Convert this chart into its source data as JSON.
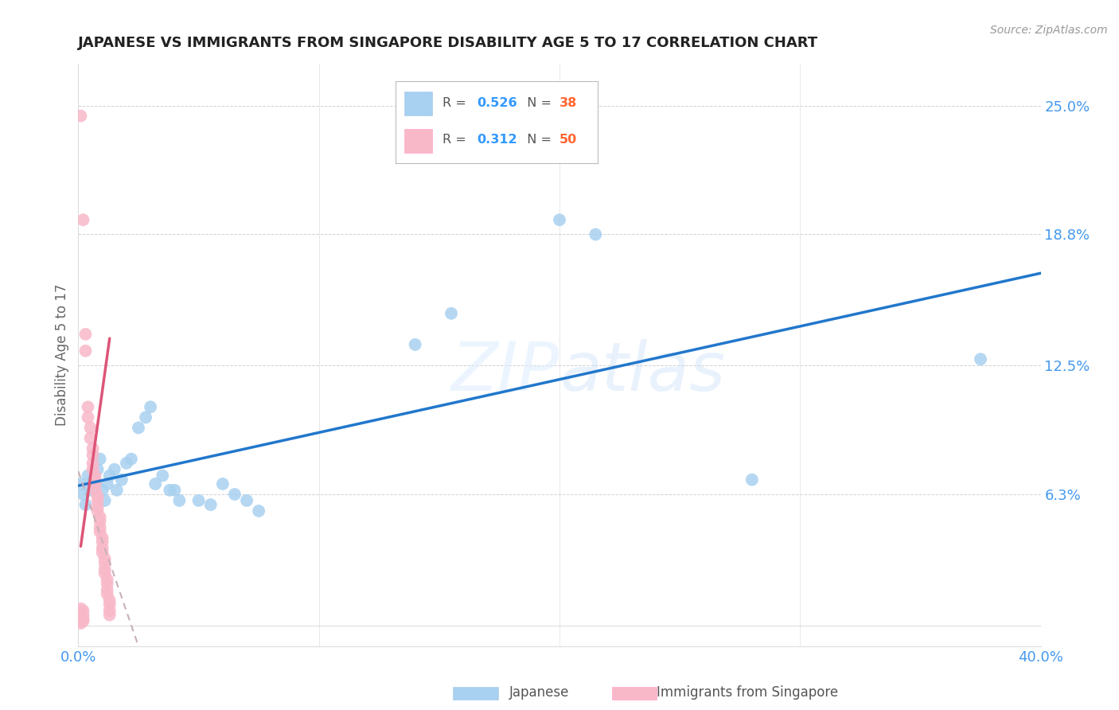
{
  "title": "JAPANESE VS IMMIGRANTS FROM SINGAPORE DISABILITY AGE 5 TO 17 CORRELATION CHART",
  "source": "Source: ZipAtlas.com",
  "ylabel": "Disability Age 5 to 17",
  "ytick_values": [
    0.0,
    0.063,
    0.125,
    0.188,
    0.25
  ],
  "ytick_labels": [
    "",
    "6.3%",
    "12.5%",
    "18.8%",
    "25.0%"
  ],
  "xrange": [
    0.0,
    0.4
  ],
  "yrange": [
    -0.01,
    0.27
  ],
  "watermark": "ZIPatlas",
  "japanese_scatter": [
    [
      0.001,
      0.068
    ],
    [
      0.002,
      0.063
    ],
    [
      0.003,
      0.058
    ],
    [
      0.004,
      0.072
    ],
    [
      0.005,
      0.065
    ],
    [
      0.006,
      0.07
    ],
    [
      0.007,
      0.068
    ],
    [
      0.008,
      0.075
    ],
    [
      0.009,
      0.08
    ],
    [
      0.01,
      0.065
    ],
    [
      0.011,
      0.06
    ],
    [
      0.012,
      0.068
    ],
    [
      0.013,
      0.072
    ],
    [
      0.015,
      0.075
    ],
    [
      0.016,
      0.065
    ],
    [
      0.018,
      0.07
    ],
    [
      0.02,
      0.078
    ],
    [
      0.022,
      0.08
    ],
    [
      0.025,
      0.095
    ],
    [
      0.028,
      0.1
    ],
    [
      0.03,
      0.105
    ],
    [
      0.032,
      0.068
    ],
    [
      0.035,
      0.072
    ],
    [
      0.038,
      0.065
    ],
    [
      0.04,
      0.065
    ],
    [
      0.042,
      0.06
    ],
    [
      0.05,
      0.06
    ],
    [
      0.055,
      0.058
    ],
    [
      0.06,
      0.068
    ],
    [
      0.065,
      0.063
    ],
    [
      0.07,
      0.06
    ],
    [
      0.075,
      0.055
    ],
    [
      0.14,
      0.135
    ],
    [
      0.155,
      0.15
    ],
    [
      0.2,
      0.195
    ],
    [
      0.215,
      0.188
    ],
    [
      0.28,
      0.07
    ],
    [
      0.375,
      0.128
    ]
  ],
  "singapore_scatter": [
    [
      0.001,
      0.245
    ],
    [
      0.002,
      0.195
    ],
    [
      0.003,
      0.14
    ],
    [
      0.003,
      0.132
    ],
    [
      0.004,
      0.105
    ],
    [
      0.004,
      0.1
    ],
    [
      0.005,
      0.095
    ],
    [
      0.005,
      0.09
    ],
    [
      0.006,
      0.085
    ],
    [
      0.006,
      0.082
    ],
    [
      0.006,
      0.078
    ],
    [
      0.006,
      0.075
    ],
    [
      0.007,
      0.072
    ],
    [
      0.007,
      0.07
    ],
    [
      0.007,
      0.068
    ],
    [
      0.007,
      0.065
    ],
    [
      0.008,
      0.062
    ],
    [
      0.008,
      0.06
    ],
    [
      0.008,
      0.057
    ],
    [
      0.008,
      0.055
    ],
    [
      0.009,
      0.052
    ],
    [
      0.009,
      0.05
    ],
    [
      0.009,
      0.047
    ],
    [
      0.009,
      0.045
    ],
    [
      0.01,
      0.042
    ],
    [
      0.01,
      0.04
    ],
    [
      0.01,
      0.037
    ],
    [
      0.01,
      0.035
    ],
    [
      0.011,
      0.032
    ],
    [
      0.011,
      0.03
    ],
    [
      0.011,
      0.027
    ],
    [
      0.011,
      0.025
    ],
    [
      0.012,
      0.022
    ],
    [
      0.012,
      0.02
    ],
    [
      0.012,
      0.017
    ],
    [
      0.012,
      0.015
    ],
    [
      0.013,
      0.012
    ],
    [
      0.013,
      0.01
    ],
    [
      0.013,
      0.007
    ],
    [
      0.013,
      0.005
    ],
    [
      0.001,
      0.004
    ],
    [
      0.001,
      0.003
    ],
    [
      0.001,
      0.002
    ],
    [
      0.001,
      0.001
    ],
    [
      0.002,
      0.003
    ],
    [
      0.002,
      0.002
    ],
    [
      0.001,
      0.008
    ],
    [
      0.001,
      0.006
    ],
    [
      0.002,
      0.005
    ],
    [
      0.002,
      0.007
    ]
  ],
  "japanese_color": "#a8d0f0",
  "singapore_color": "#f8b8c8",
  "japanese_line_color": "#2277cc",
  "singapore_line_dashed_color": "#ccaaaa",
  "singapore_line_solid_color": "#dd5577",
  "background_color": "#ffffff",
  "grid_color": "#cccccc"
}
